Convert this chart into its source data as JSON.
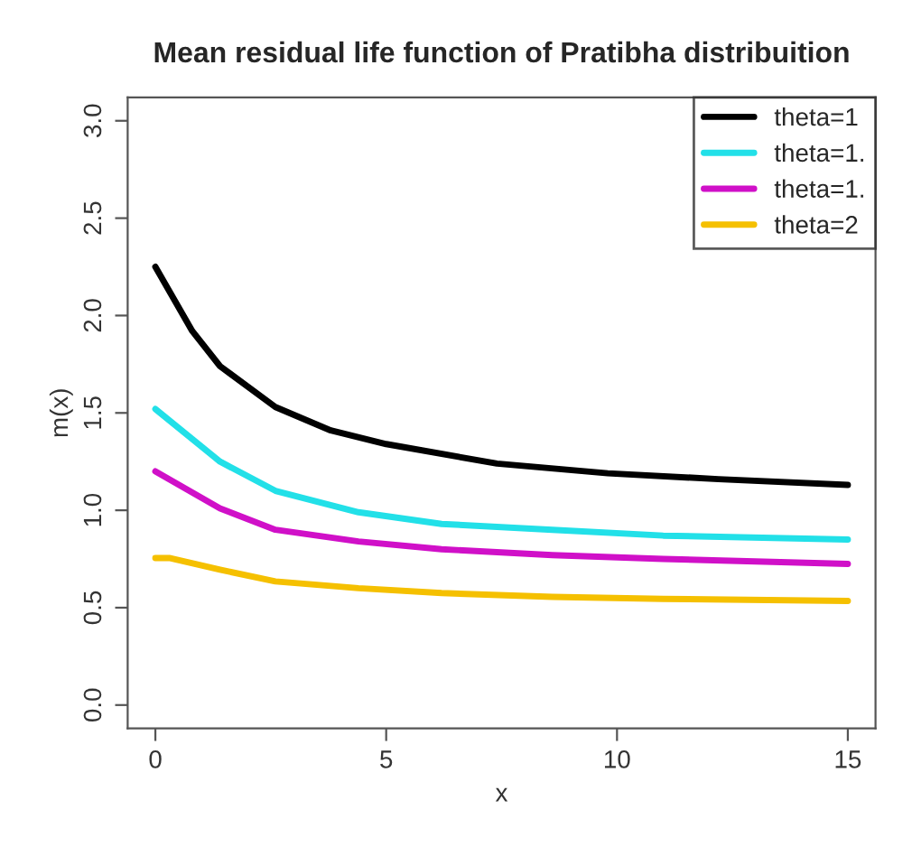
{
  "chart_data": {
    "type": "line",
    "title": "Mean residual life function of Pratibha distribuition",
    "xlabel": "x",
    "ylabel": "m(x)",
    "xlim": [
      -0.6,
      15.6
    ],
    "ylim": [
      -0.12,
      3.12
    ],
    "xticks": [
      0,
      5,
      10,
      15
    ],
    "yticks": [
      {
        "value": 0,
        "label": "0.0"
      },
      {
        "value": 0.5,
        "label": "0.5"
      },
      {
        "value": 1,
        "label": "1.0"
      },
      {
        "value": 1.5,
        "label": "1.5"
      },
      {
        "value": 2,
        "label": "2.0"
      },
      {
        "value": 2.5,
        "label": "2.5"
      },
      {
        "value": 3,
        "label": "3.0"
      }
    ],
    "grid": false,
    "legend": "top right",
    "marker": "none",
    "line_style": "solid",
    "series": [
      {
        "name": "theta=1",
        "color": "#000000",
        "x": [
          0,
          0.8,
          1.4,
          2.6,
          3.8,
          5.0,
          7.4,
          9.8,
          12.2,
          15
        ],
        "values": [
          2.25,
          1.92,
          1.74,
          1.53,
          1.41,
          1.34,
          1.24,
          1.19,
          1.16,
          1.13
        ]
      },
      {
        "name": "theta=1.",
        "color": "#22e0e8",
        "x": [
          0,
          1.4,
          2.6,
          4.4,
          6.2,
          8.6,
          11,
          15
        ],
        "values": [
          1.52,
          1.25,
          1.1,
          0.99,
          0.93,
          0.9,
          0.87,
          0.85
        ]
      },
      {
        "name": "theta=1.",
        "color": "#d010c8",
        "x": [
          0,
          1.4,
          2.6,
          4.4,
          6.2,
          8.6,
          11,
          15
        ],
        "values": [
          1.2,
          1.01,
          0.9,
          0.84,
          0.8,
          0.77,
          0.75,
          0.725
        ]
      },
      {
        "name": "theta=2",
        "color": "#f5c000",
        "x": [
          0,
          0.3,
          1.4,
          2.6,
          4.4,
          6.2,
          8.6,
          11,
          15
        ],
        "values": [
          0.755,
          0.755,
          0.695,
          0.635,
          0.6,
          0.575,
          0.555,
          0.545,
          0.535
        ]
      }
    ]
  }
}
